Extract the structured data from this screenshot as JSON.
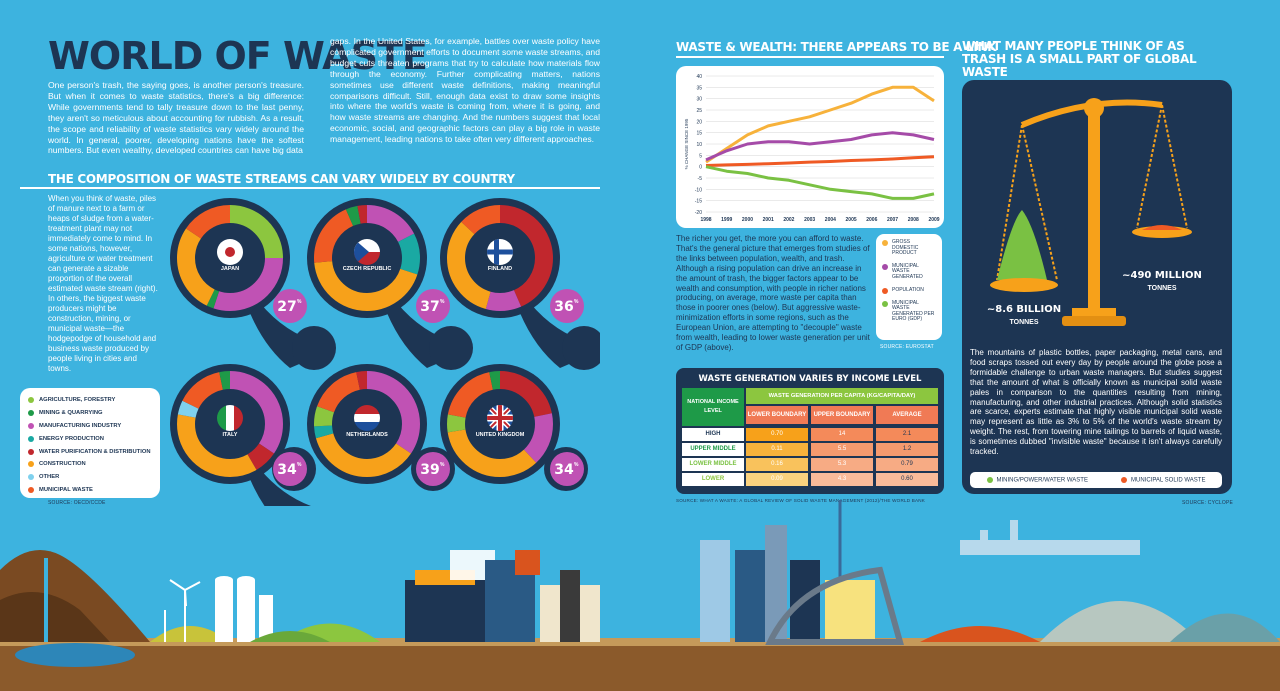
{
  "header": {
    "title": "WORLD OF WASTE",
    "intro_left": "One person's trash, the saying goes, is another person's treasure. But when it comes to waste statistics, there's a big difference: While governments tend to tally treasure down to the last penny, they aren't so meticulous about accounting for rubbish. As a result, the scope and reliability of waste statistics vary widely around the world. In general, poorer, developing nations have the softest numbers. But even wealthy, developed countries can have big data",
    "intro_right": "gaps. In the United States, for example, battles over waste policy have complicated government efforts to document some waste streams, and budget cuts threaten programs that try to calculate how materials flow through the economy. Further complicating matters, nations sometimes use different waste definitions, making meaningful comparisons difficult. Still, enough data exist to draw some insights into where the world's waste is coming from, where it is going, and how waste streams are changing. And the numbers suggest that local economic, social, and geographic factors can play a big role in waste management, leading nations to take often very different approaches."
  },
  "composition": {
    "heading": "THE COMPOSITION OF WASTE STREAMS CAN VARY WIDELY BY COUNTRY",
    "side_text": "When you think of waste, piles of manure next to a farm or heaps of sludge from a water-treatment plant may not immediately come to mind. In some nations, however, agriculture or water treatment can generate a sizable proportion of the overall estimated waste stream (right). In others, the biggest waste producers might be construction, mining, or municipal waste—the hodgepodge of household and business waste produced by people living in cities and towns.",
    "source": "SOURCE: OECD/CCDE",
    "legend": [
      {
        "label": "AGRICULTURE, FORESTRY",
        "color": "#8cc63f"
      },
      {
        "label": "MINING & QUARRYING",
        "color": "#1e9a48"
      },
      {
        "label": "MANUFACTURING INDUSTRY",
        "color": "#c052b4"
      },
      {
        "label": "ENERGY PRODUCTION",
        "color": "#1aa9a3"
      },
      {
        "label": "WATER PURIFICATION & DISTRIBUTION",
        "color": "#c1272d"
      },
      {
        "label": "CONSTRUCTION",
        "color": "#f7a11a"
      },
      {
        "label": "OTHER",
        "color": "#7fd1ee"
      },
      {
        "label": "MUNICIPAL WASTE",
        "color": "#ef5a24"
      }
    ],
    "countries": [
      {
        "name": "JAPAN",
        "pct": "27"
      },
      {
        "name": "CZECH REPUBLIC",
        "pct": "37"
      },
      {
        "name": "FINLAND",
        "pct": "36"
      },
      {
        "name": "ITALY",
        "pct": "34"
      },
      {
        "name": "NETHERLANDS",
        "pct": "39"
      },
      {
        "name": "UNITED KINGDOM",
        "pct": "34"
      }
    ],
    "pct_sup": "%"
  },
  "wealth": {
    "heading": "WASTE & WEALTH: THERE APPEARS TO BE A LINK",
    "body": "The richer you get, the more you can afford to waste. That's the general picture that emerges from studies of the links between population, wealth, and trash. Although a rising population can drive an increase in the amount of trash, the bigger factors appear to be wealth and consumption, with people in richer nations producing, on average, more waste per capita than those in poorer ones (below). But aggressive waste-minimization efforts in some regions, such as the European Union, are attempting to \"decouple\" waste from wealth, leading to lower waste generation per unit of GDP (above).",
    "source": "SOURCE: EUROSTAT",
    "legend": [
      {
        "label": "GROSS DOMESTIC PRODUCT",
        "color": "#f7b23b"
      },
      {
        "label": "MUNICIPAL WASTE GENERATED",
        "color": "#a54ba8"
      },
      {
        "label": "POPULATION",
        "color": "#ef5a24"
      },
      {
        "label": "MUNICIPAL WASTE GENERATED PER EURO (GDP)",
        "color": "#7ac143"
      }
    ]
  },
  "chart_data": {
    "type": "line",
    "ylabel": "% CHANGE SINCE 1995",
    "x": [
      "1998",
      "1999",
      "2000",
      "2001",
      "2002",
      "2003",
      "2004",
      "2005",
      "2006",
      "2007",
      "2008",
      "2009"
    ],
    "ylim": [
      -20,
      40
    ],
    "yticks": [
      40,
      35,
      30,
      25,
      20,
      15,
      10,
      5,
      0,
      -5,
      -10,
      -15,
      -20
    ],
    "series": [
      {
        "name": "GROSS DOMESTIC PRODUCT",
        "color": "#f7b23b",
        "values": [
          2,
          8,
          14,
          18,
          20,
          22,
          25,
          28,
          32,
          35,
          35,
          29
        ]
      },
      {
        "name": "MUNICIPAL WASTE GENERATED",
        "color": "#a54ba8",
        "values": [
          3,
          7,
          10,
          11,
          11,
          10,
          11,
          12,
          14,
          15,
          14,
          12
        ]
      },
      {
        "name": "POPULATION",
        "color": "#ef5a24",
        "values": [
          0.5,
          0.8,
          1,
          1.3,
          1.6,
          2,
          2.3,
          2.7,
          3,
          3.4,
          3.9,
          4.4
        ]
      },
      {
        "name": "MUNICIPAL WASTE GENERATED PER EURO (GDP)",
        "color": "#7ac143",
        "values": [
          0,
          -2,
          -3,
          -5,
          -6,
          -8,
          -10,
          -11,
          -12,
          -14,
          -14,
          -12
        ]
      }
    ]
  },
  "income_table": {
    "caption": "WASTE GENERATION VARIES BY INCOME LEVEL",
    "col_group": "WASTE GENERATION PER CAPITA (KG/CAPITA/DAY)",
    "row_header": "NATIONAL INCOME LEVEL",
    "columns": [
      "LOWER BOUNDARY",
      "UPPER BOUNDARY",
      "AVERAGE"
    ],
    "rows": [
      {
        "level": "HIGH",
        "values": [
          "0.70",
          "14",
          "2.1"
        ]
      },
      {
        "level": "UPPER MIDDLE",
        "values": [
          "0.11",
          "5.5",
          "1.2"
        ]
      },
      {
        "level": "LOWER MIDDLE",
        "values": [
          "0.16",
          "5.3",
          "0.79"
        ]
      },
      {
        "level": "LOWER",
        "values": [
          "0.09",
          "4.3",
          "0.60"
        ]
      }
    ],
    "source": "SOURCE: WHAT A WASTE: A GLOBAL REVIEW OF SOLID WASTE MANAGEMENT (2012)/THE WORLD BANK"
  },
  "trash": {
    "heading": "WHAT MANY PEOPLE THINK OF AS TRASH IS A SMALL PART OF GLOBAL WASTE",
    "left_amount": "~8.6 BILLION",
    "left_unit": "TONNES",
    "right_amount": "~490 MILLION",
    "right_unit": "TONNES",
    "body": "The mountains of plastic bottles, paper packaging, metal cans, and food scraps tossed out every day by people around the globe pose a formidable challenge to urban waste managers. But studies suggest that the amount of what is officially known as municipal solid waste pales in comparison to the quantities resulting from mining, manufacturing, and other industrial practices. Although solid statistics are scarce, experts estimate that highly visible municipal solid waste may represent as little as 3% to 5% of the world's waste stream by weight. The rest, from towering mine tailings to barrels of liquid waste, is sometimes dubbed \"invisible waste\" because it isn't always carefully tracked.",
    "legend": [
      {
        "label": "MINING/POWER/WATER WASTE",
        "color": "#7ac143"
      },
      {
        "label": "MUNICIPAL SOLID WASTE",
        "color": "#ef5a24"
      }
    ],
    "source": "SOURCE: CYCLOPE"
  }
}
